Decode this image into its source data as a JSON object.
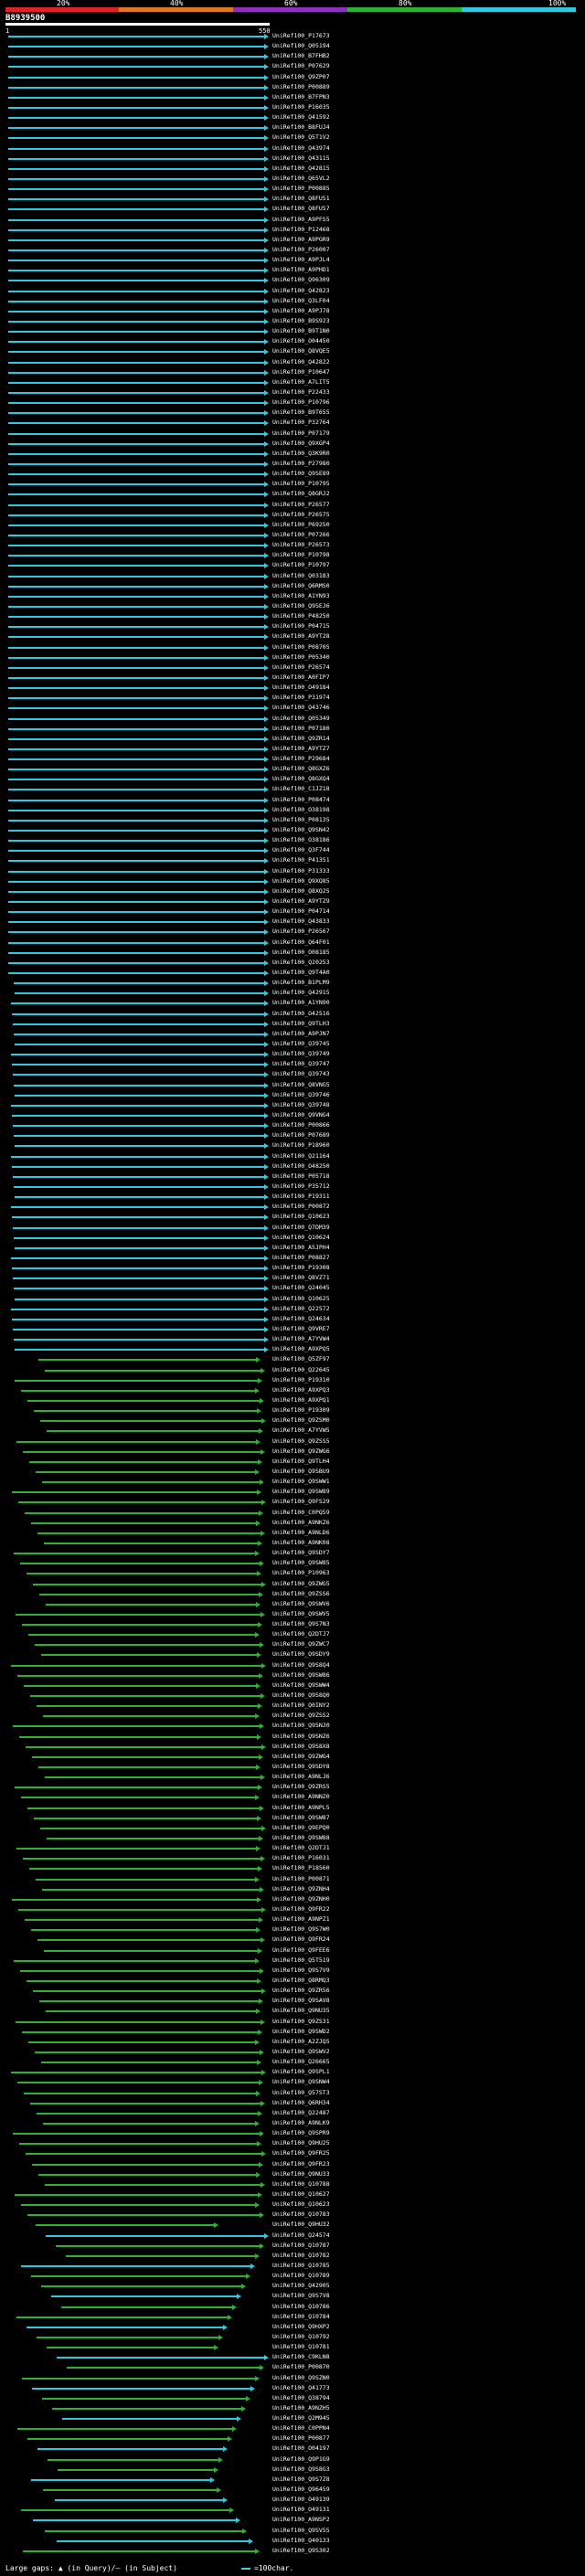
{
  "scale": {
    "ticks": [
      "20%",
      "40%",
      "60%",
      "80%",
      "100%"
    ],
    "colors": [
      "#e0202a",
      "#e07820",
      "#9030c0",
      "#30b030",
      "#30c8e0"
    ]
  },
  "query": {
    "id": "B8939500",
    "start": "1",
    "end": "550"
  },
  "footer": {
    "gaps_label": "Large gaps:",
    "gaps_query": "(in Query)",
    "gaps_subject": "(in Subject)",
    "legend_label": "=100char."
  },
  "hits": [
    "UniRef100_P17673",
    "UniRef100_Q05194",
    "UniRef100_B7FHB2",
    "UniRef100_P07629",
    "UniRef100_Q9ZP07",
    "UniRef100_P00889",
    "UniRef100_B7FPN3",
    "UniRef100_P16035",
    "UniRef100_Q41592",
    "UniRef100_B8FUJ4",
    "UniRef100_Q5T1V2",
    "UniRef100_Q43974",
    "UniRef100_Q43115",
    "UniRef100_Q42815",
    "UniRef100_Q65VL2",
    "UniRef100_P00885",
    "UniRef100_Q8FU51",
    "UniRef100_Q8FU57",
    "UniRef100_A9PFS5",
    "UniRef100_P12468",
    "UniRef100_A9PGR9",
    "UniRef100_P26007",
    "UniRef100_A9PJL4",
    "UniRef100_A9PHD1",
    "UniRef100_Q96309",
    "UniRef100_Q42823",
    "UniRef100_Q3LF04",
    "UniRef100_A9PJ78",
    "UniRef100_B9S923",
    "UniRef100_B9T1N0",
    "UniRef100_O04450",
    "UniRef100_Q8VQE5",
    "UniRef100_Q42822",
    "UniRef100_P10647",
    "UniRef100_A7LIT5",
    "UniRef100_P22433",
    "UniRef100_P10796",
    "UniRef100_B9T655",
    "UniRef100_P32764",
    "UniRef100_P07179",
    "UniRef100_Q9XGP4",
    "UniRef100_Q3K9R0",
    "UniRef100_P27980",
    "UniRef100_Q9SE89",
    "UniRef100_P10795",
    "UniRef100_Q8GRJ2",
    "UniRef100_P26577",
    "UniRef100_P26575",
    "UniRef100_P69250",
    "UniRef100_P07266",
    "UniRef100_P26573",
    "UniRef100_P10798",
    "UniRef100_P10797",
    "UniRef100_Q03183",
    "UniRef100_Q6RMS0",
    "UniRef100_A1YN93",
    "UniRef100_Q9SEJ6",
    "UniRef100_P48250",
    "UniRef100_P04715",
    "UniRef100_A9YT28",
    "UniRef100_P08705",
    "UniRef100_P05340",
    "UniRef100_P26574",
    "UniRef100_A0FIP7",
    "UniRef100_O49184",
    "UniRef100_P31974",
    "UniRef100_Q43746",
    "UniRef100_Q05349",
    "UniRef100_P07180",
    "UniRef100_Q9ZR14",
    "UniRef100_A9YTZ7",
    "UniRef100_P29684",
    "UniRef100_Q8GXZ6",
    "UniRef100_Q8GXQ4",
    "UniRef100_C1JZ18",
    "UniRef100_P08474",
    "UniRef100_O38198",
    "UniRef100_P08135",
    "UniRef100_Q9SN42",
    "UniRef100_O38186",
    "UniRef100_Q3F744",
    "UniRef100_P41351",
    "UniRef100_P31333",
    "UniRef100_Q9XQ85",
    "UniRef100_Q8XQ25",
    "UniRef100_A9YTZ9",
    "UniRef100_P04714",
    "UniRef100_Q43833",
    "UniRef100_P26567",
    "UniRef100_Q64F01",
    "UniRef100_O08185",
    "UniRef100_Q20253",
    "UniRef100_Q9T4A0",
    "UniRef100_B1PLM9",
    "UniRef100_Q42915",
    "UniRef100_A1YN90",
    "UniRef100_O42516",
    "UniRef100_Q9TLH3",
    "UniRef100_A9PJN7",
    "UniRef100_Q39745",
    "UniRef100_Q39749",
    "UniRef100_Q39747",
    "UniRef100_Q39743",
    "UniRef100_Q8VNG5",
    "UniRef100_Q39746",
    "UniRef100_Q39748",
    "UniRef100_Q9VNG4",
    "UniRef100_P00866",
    "UniRef100_P07689",
    "UniRef100_P18960",
    "UniRef100_Q21164",
    "UniRef100_O48250",
    "UniRef100_P05718",
    "UniRef100_P35712",
    "UniRef100_P19311",
    "UniRef100_P00872",
    "UniRef100_Q10623",
    "UniRef100_Q7DM39",
    "UniRef100_Q10624",
    "UniRef100_A5JPH4",
    "UniRef100_P08827",
    "UniRef100_P19308",
    "UniRef100_Q8VZ71",
    "UniRef100_Q24045",
    "UniRef100_Q10625",
    "UniRef100_Q22572",
    "UniRef100_Q24634",
    "UniRef100_Q9VRE7",
    "UniRef100_A7YVW4",
    "UniRef100_A9XPQ5",
    "UniRef100_Q5ZF97",
    "UniRef100_Q22645",
    "UniRef100_P19310",
    "UniRef100_A9XPQ3",
    "UniRef100_A9XPQ1",
    "UniRef100_P19309",
    "UniRef100_Q9ZSM0",
    "UniRef100_A7YVW5",
    "UniRef100_Q9ZSS5",
    "UniRef100_Q9ZWG6",
    "UniRef100_Q9TLH4",
    "UniRef100_Q9SBU9",
    "UniRef100_Q9SWW1",
    "UniRef100_Q9SW89",
    "UniRef100_Q9FS29",
    "UniRef100_C0PQ59",
    "UniRef100_A9NKZ6",
    "UniRef100_A9NLD6",
    "UniRef100_A9NK08",
    "UniRef100_Q9SDY7",
    "UniRef100_Q9SW85",
    "UniRef100_P10963",
    "UniRef100_Q9ZWG5",
    "UniRef100_Q9ZSS6",
    "UniRef100_Q9SWV6",
    "UniRef100_Q9SWV5",
    "UniRef100_Q9S7N3",
    "UniRef100_Q2DTJ7",
    "UniRef100_Q9ZWC7",
    "UniRef100_Q9SDY9",
    "UniRef100_Q9S8Q4",
    "UniRef100_Q9SW86",
    "UniRef100_Q9SWW4",
    "UniRef100_Q9S8Q0",
    "UniRef100_Q0INY2",
    "UniRef100_Q9ZSS2",
    "UniRef100_Q9SNJ0",
    "UniRef100_Q9SNZ6",
    "UniRef100_Q9S8X8",
    "UniRef100_Q9ZWG4",
    "UniRef100_Q9SDY8",
    "UniRef100_A9NLJ6",
    "UniRef100_Q9ZRS5",
    "UniRef100_A9NNZ0",
    "UniRef100_A9NPL5",
    "UniRef100_Q9SW87",
    "UniRef100_Q9EPQ0",
    "UniRef100_Q9SW88",
    "UniRef100_Q2DTJ1",
    "UniRef100_P16031",
    "UniRef100_P18560",
    "UniRef100_P00871",
    "UniRef100_Q9ZNH4",
    "UniRef100_Q9ZNH0",
    "UniRef100_Q9FR22",
    "UniRef100_A9NPZ1",
    "UniRef100_Q9S7W0",
    "UniRef100_Q9FR24",
    "UniRef100_Q9FEE6",
    "UniRef100_Q5T519",
    "UniRef100_Q9S7V9",
    "UniRef100_Q8RMQ3",
    "UniRef100_Q9ZR56",
    "UniRef100_Q9SAV8",
    "UniRef100_Q9NU35",
    "UniRef100_Q9ZS31",
    "UniRef100_Q9SWD2",
    "UniRef100_A2ZJQ5",
    "UniRef100_Q9SWV2",
    "UniRef100_Q26665",
    "UniRef100_Q9SPL1",
    "UniRef100_Q9SNW4",
    "UniRef100_Q57ST3",
    "UniRef100_Q6RH34",
    "UniRef100_Q22487",
    "UniRef100_A9NLK9",
    "UniRef100_Q9SPR9",
    "UniRef100_Q9HU25",
    "UniRef100_Q9FR25",
    "UniRef100_Q9FR23",
    "UniRef100_Q9NU33",
    "UniRef100_Q10788",
    "UniRef100_Q10627",
    "UniRef100_Q10623",
    "UniRef100_Q10783",
    "UniRef100_Q9HU32",
    "UniRef100_Q24574",
    "UniRef100_Q10787",
    "UniRef100_Q10782",
    "UniRef100_Q10785",
    "UniRef100_Q10789",
    "UniRef100_Q42905",
    "UniRef100_Q9S7V8",
    "UniRef100_Q10786",
    "UniRef100_Q10784",
    "UniRef100_Q9HXP2",
    "UniRef100_Q10792",
    "UniRef100_Q10781",
    "UniRef100_C9KLN8",
    "UniRef100_P00870",
    "UniRef100_Q9SZN0",
    "UniRef100_Q41773",
    "UniRef100_Q38794",
    "UniRef100_A9NZH5",
    "UniRef100_Q2M945",
    "UniRef100_C0PPN4",
    "UniRef100_P00877",
    "UniRef100_O04197",
    "UniRef100_Q9P1G9",
    "UniRef100_Q9S8G3",
    "UniRef100_Q9S7Z8",
    "UniRef100_Q96459",
    "UniRef100_O49139",
    "UniRef100_O49131",
    "UniRef100_A9NSP2",
    "UniRef100_Q9SV55",
    "UniRef100_Q40133",
    "UniRef100_Q9S302"
  ]
}
